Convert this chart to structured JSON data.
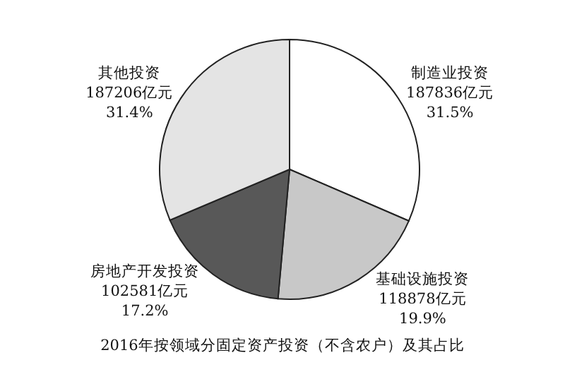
{
  "chart_data": {
    "type": "pie",
    "title": "2016年按领域分固定资产投资（不含农户）及其占比",
    "categories": [
      "制造业投资",
      "基础设施投资",
      "房地产开发投资",
      "其他投资"
    ],
    "values": [
      187836,
      118878,
      102581,
      187206
    ],
    "colors": [
      "#ffffff",
      "#c8c8c8",
      "#585858",
      "#e4e4e4"
    ],
    "value_labels": [
      "187836亿元\n31.5%",
      "118878亿元\n19.9%",
      "102581亿元\n17.2%",
      "187206亿元\n31.4%"
    ]
  }
}
